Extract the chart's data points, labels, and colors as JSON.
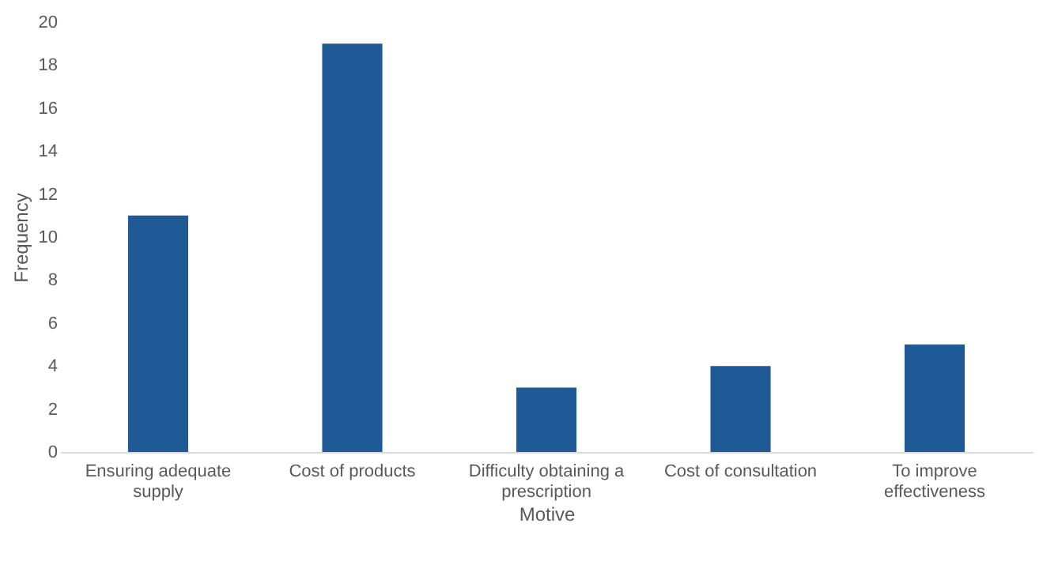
{
  "chart_data": {
    "type": "bar",
    "xlabel": "Motive",
    "ylabel": "Frequency",
    "categories": [
      "Ensuring adequate supply",
      "Cost of products",
      "Difficulty obtaining a prescription",
      "Cost of consultation",
      "To improve effectiveness"
    ],
    "values": [
      11,
      19,
      3,
      4,
      5
    ],
    "color": "#1f5a96",
    "ylim": [
      0,
      20
    ],
    "yticks": [
      0,
      2,
      4,
      6,
      8,
      10,
      12,
      14,
      16,
      18,
      20
    ],
    "grid": false
  }
}
